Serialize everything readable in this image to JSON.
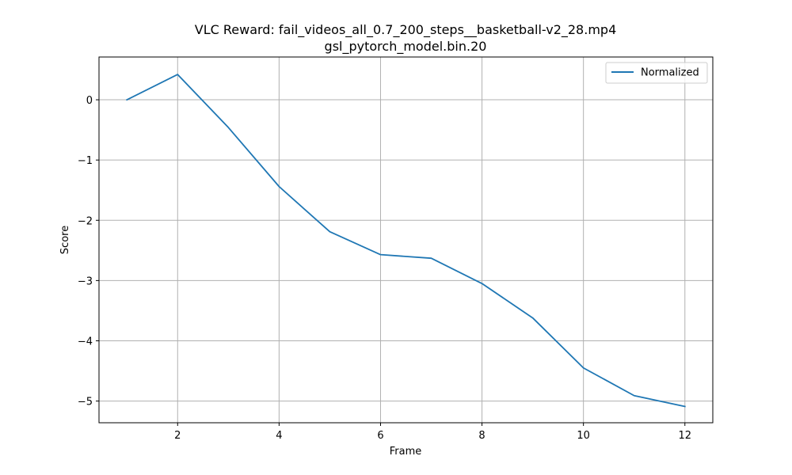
{
  "chart_data": {
    "type": "line",
    "title_lines": [
      "VLC Reward: fail_videos_all_0.7_200_steps__basketball-v2_28.mp4",
      "gsl_pytorch_model.bin.20"
    ],
    "xlabel": "Frame",
    "ylabel": "Score",
    "xlim": [
      0.45,
      12.55
    ],
    "ylim": [
      -5.36,
      0.71
    ],
    "xticks": [
      2,
      4,
      6,
      8,
      10,
      12
    ],
    "yticks": [
      0,
      -1,
      -2,
      -3,
      -4,
      -5
    ],
    "xtick_labels": [
      "2",
      "4",
      "6",
      "8",
      "10",
      "12"
    ],
    "ytick_labels": [
      "0",
      "−1",
      "−2",
      "−3",
      "−4",
      "−5"
    ],
    "grid": true,
    "legend_position": "top-right",
    "series": [
      {
        "name": "Normalized",
        "color": "#1f77b4",
        "x": [
          1,
          2,
          3,
          4,
          5,
          6,
          7,
          8,
          9,
          10,
          11,
          12
        ],
        "y": [
          0.0,
          0.42,
          -0.46,
          -1.44,
          -2.19,
          -2.57,
          -2.63,
          -3.05,
          -3.62,
          -4.45,
          -4.91,
          -5.09
        ]
      }
    ]
  }
}
